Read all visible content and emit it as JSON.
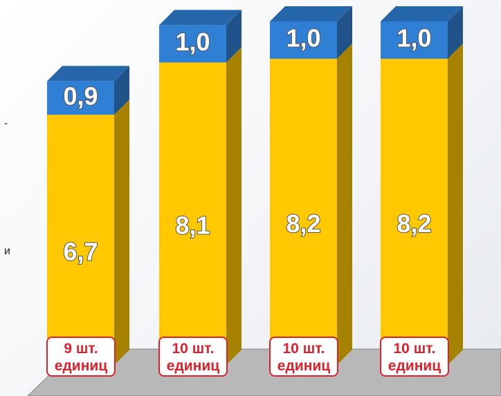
{
  "chart_data": {
    "type": "bar",
    "stacked": true,
    "categories": [
      "9 шт.\nединиц",
      "10 шт.\nединиц",
      "10 шт.\nединиц",
      "10 шт.\nединиц"
    ],
    "series": [
      {
        "color": "#ffc800",
        "values": [
          6.7,
          8.1,
          8.2,
          8.2
        ],
        "value_labels": [
          "6,7",
          "8,1",
          "8,2",
          "8,2"
        ]
      },
      {
        "color": "#2f7fd4",
        "values": [
          0.9,
          1.0,
          1.0,
          1.0
        ],
        "value_labels": [
          "0,9",
          "1,0",
          "1,0",
          "1,0"
        ]
      }
    ],
    "annotations": [
      "-",
      "и"
    ]
  }
}
